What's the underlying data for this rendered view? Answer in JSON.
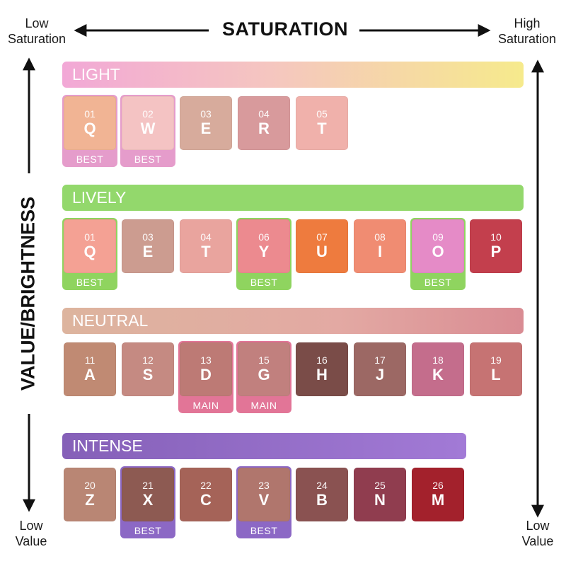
{
  "header": {
    "left_label": "Low\nSaturation",
    "right_label": "High\nSaturation",
    "title": "SATURATION"
  },
  "vertical_axis": {
    "title": "VALUE/BRIGHTNESS",
    "bottom_left_label": "Low\nValue",
    "bottom_right_label": "Low\nValue"
  },
  "colors": {
    "light_band": "linear-gradient(90deg,#f2a8d6 0%,#f5c6c0 45%,#f6ea8c 100%)",
    "lively_band": "#93d86c",
    "neutral_band": "linear-gradient(90deg,#ddb49e 0%,#e3a9a3 60%,#d98c93 100%)",
    "intense_band": "linear-gradient(90deg,#8560b8 0%,#a27ad6 100%)",
    "light_tag": "#e59ccb",
    "lively_tag": "#8fd45f",
    "neutral_tag": "#e27597",
    "intense_tag": "#8c68c5"
  },
  "groups": [
    {
      "name": "LIGHT",
      "swatches": [
        {
          "num": "01",
          "letter": "Q",
          "color": "#f1b494",
          "tag": "BEST"
        },
        {
          "num": "02",
          "letter": "W",
          "color": "#f4c3c3",
          "tag": "BEST"
        },
        {
          "num": "03",
          "letter": "E",
          "color": "#d7ab9c",
          "tag": ""
        },
        {
          "num": "04",
          "letter": "R",
          "color": "#d89a9c",
          "tag": ""
        },
        {
          "num": "05",
          "letter": "T",
          "color": "#f0b1ab",
          "tag": ""
        }
      ]
    },
    {
      "name": "LIVELY",
      "swatches": [
        {
          "num": "01",
          "letter": "Q",
          "color": "#f4a194",
          "tag": "BEST"
        },
        {
          "num": "03",
          "letter": "E",
          "color": "#cc9c90",
          "tag": ""
        },
        {
          "num": "04",
          "letter": "T",
          "color": "#e9a49e",
          "tag": ""
        },
        {
          "num": "06",
          "letter": "Y",
          "color": "#ec8a8f",
          "tag": "BEST"
        },
        {
          "num": "07",
          "letter": "U",
          "color": "#ee7b3e",
          "tag": ""
        },
        {
          "num": "08",
          "letter": "I",
          "color": "#f08c72",
          "tag": ""
        },
        {
          "num": "09",
          "letter": "O",
          "color": "#e58bc7",
          "tag": "BEST"
        },
        {
          "num": "10",
          "letter": "P",
          "color": "#c33f4d",
          "tag": ""
        }
      ]
    },
    {
      "name": "NEUTRAL",
      "swatches": [
        {
          "num": "11",
          "letter": "A",
          "color": "#c08a73",
          "tag": ""
        },
        {
          "num": "12",
          "letter": "S",
          "color": "#c58a82",
          "tag": ""
        },
        {
          "num": "13",
          "letter": "D",
          "color": "#bd7a75",
          "tag": "MAIN"
        },
        {
          "num": "15",
          "letter": "G",
          "color": "#c1807e",
          "tag": "MAIN"
        },
        {
          "num": "16",
          "letter": "H",
          "color": "#7a4c48",
          "tag": ""
        },
        {
          "num": "17",
          "letter": "J",
          "color": "#9c6864",
          "tag": ""
        },
        {
          "num": "18",
          "letter": "K",
          "color": "#c46d8c",
          "tag": ""
        },
        {
          "num": "19",
          "letter": "L",
          "color": "#c67373",
          "tag": ""
        }
      ]
    },
    {
      "name": "INTENSE",
      "swatches": [
        {
          "num": "20",
          "letter": "Z",
          "color": "#b98674",
          "tag": ""
        },
        {
          "num": "21",
          "letter": "X",
          "color": "#8d5a52",
          "tag": "BEST"
        },
        {
          "num": "22",
          "letter": "C",
          "color": "#a56358",
          "tag": ""
        },
        {
          "num": "23",
          "letter": "V",
          "color": "#b0766d",
          "tag": "BEST"
        },
        {
          "num": "24",
          "letter": "B",
          "color": "#8a5251",
          "tag": ""
        },
        {
          "num": "25",
          "letter": "N",
          "color": "#903d4f",
          "tag": ""
        },
        {
          "num": "26",
          "letter": "M",
          "color": "#a3212c",
          "tag": ""
        }
      ]
    }
  ]
}
